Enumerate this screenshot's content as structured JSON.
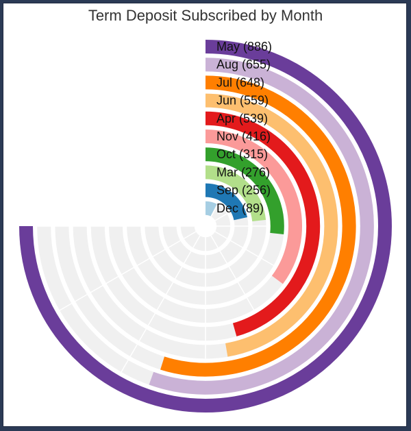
{
  "chart_data": {
    "type": "radial-bar",
    "title": "Term Deposit Subscribed by Month",
    "categories": [
      "May",
      "Aug",
      "Jul",
      "Jun",
      "Apr",
      "Nov",
      "Oct",
      "Mar",
      "Sep",
      "Dec"
    ],
    "values": [
      886,
      655,
      648,
      559,
      539,
      416,
      315,
      276,
      256,
      89
    ],
    "labels": [
      "May (886)",
      "Aug (655)",
      "Jul (648)",
      "Jun (559)",
      "Apr (539)",
      "Nov (416)",
      "Oct (315)",
      "Mar (276)",
      "Sep (256)",
      "Dec (89)"
    ],
    "colors": [
      "#6a3d9a",
      "#cab2d6",
      "#ff7f00",
      "#fdbf6f",
      "#e31a1c",
      "#fb9a99",
      "#33a02c",
      "#b2df8a",
      "#1f78b4",
      "#a6cee3"
    ],
    "max_angle_degrees": 270,
    "value_max": 886,
    "background_track_color": "#f0f0f0",
    "grid": true
  }
}
